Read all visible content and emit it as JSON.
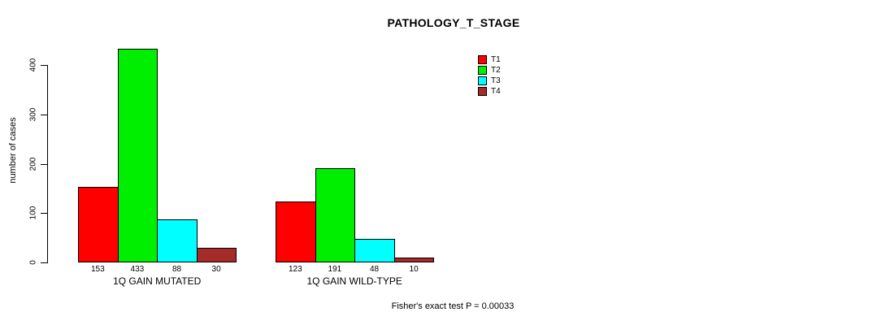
{
  "title": "PATHOLOGY_T_STAGE",
  "caption": "Fisher's exact test P = 0.00033",
  "chart_data": {
    "type": "bar",
    "title": "PATHOLOGY_T_STAGE",
    "xlabel": "",
    "ylabel": "number of cases",
    "categories": [
      "1Q GAIN MUTATED",
      "1Q GAIN WILD-TYPE"
    ],
    "series": [
      {
        "name": "T1",
        "color": "#FF0000",
        "values": [
          153,
          123
        ]
      },
      {
        "name": "T2",
        "color": "#00EE00",
        "values": [
          433,
          191
        ]
      },
      {
        "name": "T3",
        "color": "#00FFFF",
        "values": [
          88,
          48
        ]
      },
      {
        "name": "T4",
        "color": "#A52A2A",
        "values": [
          30,
          10
        ]
      }
    ],
    "bar_value_labels": [
      [
        153,
        433,
        88,
        30
      ],
      [
        123,
        191,
        48,
        10
      ]
    ],
    "ylim": [
      0,
      400
    ],
    "yticks": [
      0,
      100,
      200,
      300,
      400
    ],
    "grid": false,
    "legend_position": "top-right-inside",
    "annotation": "Fisher's exact test P = 0.00033"
  }
}
